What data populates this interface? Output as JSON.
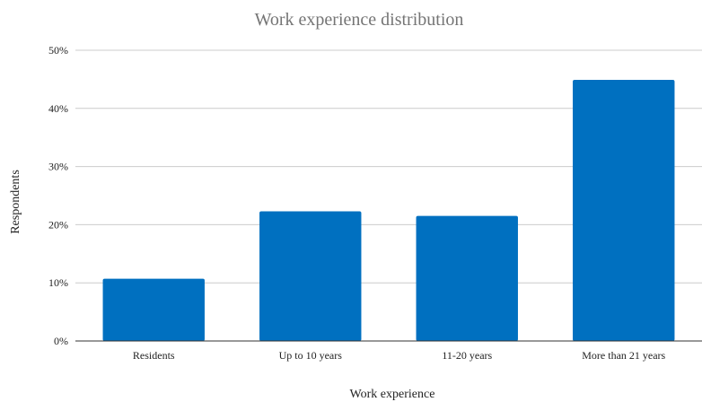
{
  "chart_data": {
    "type": "bar",
    "title": "Work experience distribution",
    "xlabel": "Work experience",
    "ylabel": "Respondents",
    "categories": [
      "Residents",
      "Up to 10 years",
      "11-20 years",
      "More than 21 years"
    ],
    "values": [
      10.7,
      22.3,
      21.5,
      44.9
    ],
    "ylim": [
      0,
      50
    ],
    "yticks": [
      "0%",
      "10%",
      "20%",
      "30%",
      "40%",
      "50%"
    ],
    "ytick_values": [
      0,
      10,
      20,
      30,
      40,
      50
    ],
    "grid": true,
    "bar_color": "#0070c0",
    "legend": "none"
  }
}
